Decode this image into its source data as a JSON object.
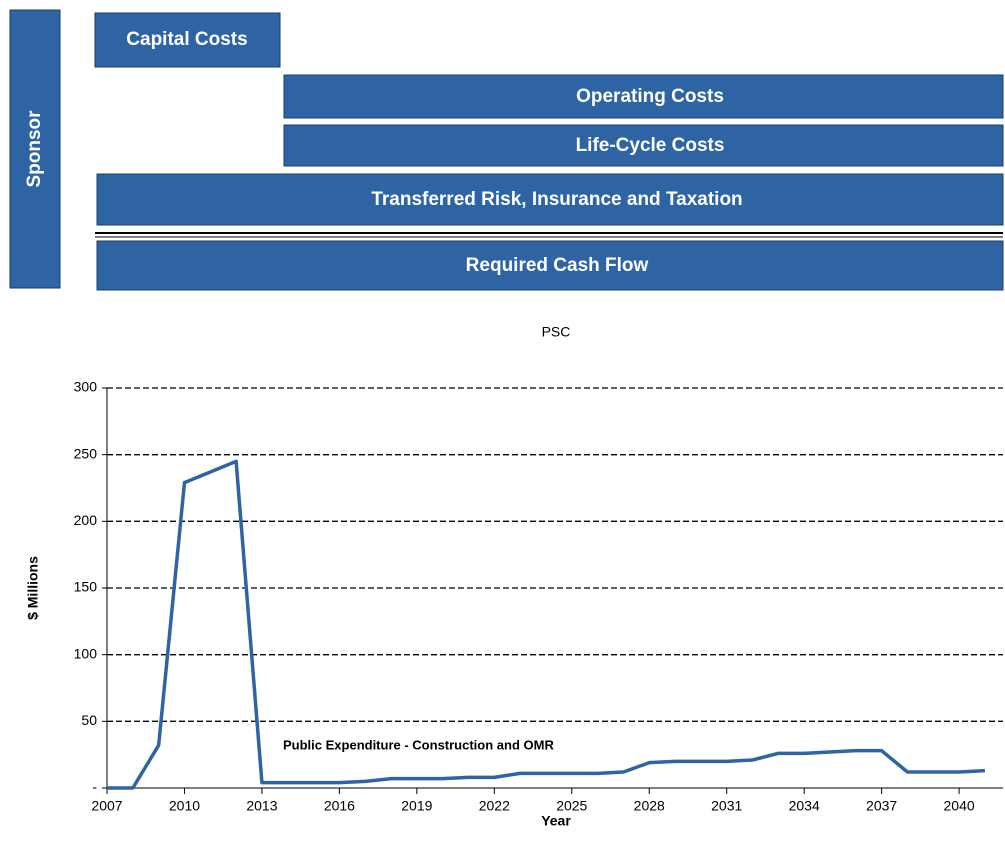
{
  "diagram": {
    "sponsor": "Sponsor",
    "boxes": [
      "Capital Costs",
      "Operating Costs",
      "Life-Cycle Costs",
      "Transferred Risk, Insurance and Taxation",
      "Required Cash Flow"
    ]
  },
  "chart_data": {
    "type": "line",
    "title": "PSC",
    "x_label": "Year",
    "y_label": "$ Millions",
    "annotation": "Public   Expenditure - Construction and OMR",
    "x": [
      2007,
      2008,
      2009,
      2010,
      2011,
      2012,
      2013,
      2014,
      2015,
      2016,
      2017,
      2018,
      2019,
      2020,
      2021,
      2022,
      2023,
      2024,
      2025,
      2026,
      2027,
      2028,
      2029,
      2030,
      2031,
      2032,
      2033,
      2034,
      2035,
      2036,
      2037,
      2038,
      2039,
      2040,
      2041
    ],
    "series": [
      {
        "name": "Public Expenditure",
        "color": "#2e64a4",
        "values": [
          0,
          0,
          32,
          229,
          237,
          245,
          4,
          4,
          4,
          4,
          5,
          7,
          7,
          7,
          8,
          8,
          11,
          11,
          11,
          11,
          12,
          19,
          20,
          20,
          20,
          21,
          26,
          26,
          27,
          28,
          28,
          12,
          12,
          12,
          13
        ]
      }
    ],
    "xlim": [
      2007,
      2041.7
    ],
    "xticks": [
      2007,
      2010,
      2013,
      2016,
      2019,
      2022,
      2025,
      2028,
      2031,
      2034,
      2037,
      2040
    ],
    "ylim": [
      0,
      300
    ],
    "yticks": [
      {
        "value": 0,
        "label": "-"
      },
      50,
      100,
      150,
      200,
      250,
      300
    ],
    "grid": true
  }
}
